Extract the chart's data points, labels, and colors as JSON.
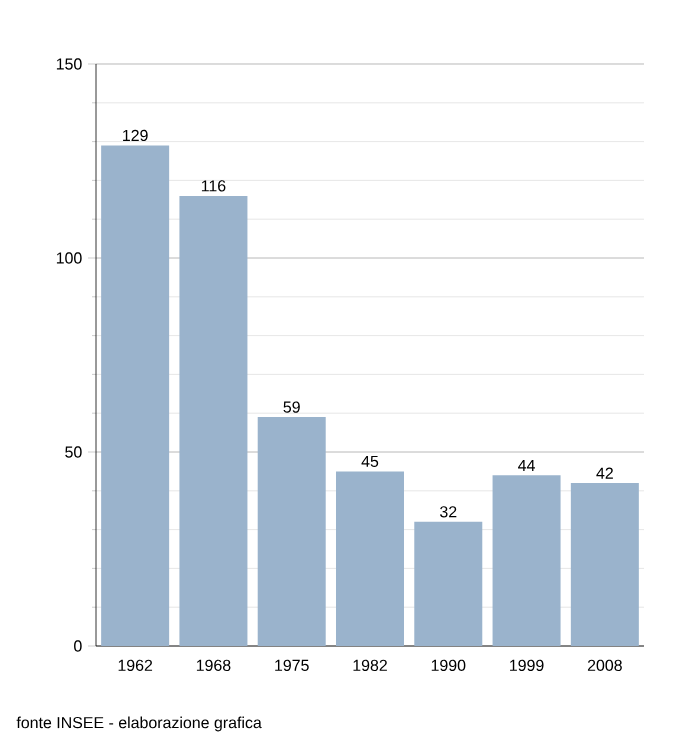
{
  "chart_data": {
    "type": "bar",
    "categories": [
      "1962",
      "1968",
      "1975",
      "1982",
      "1990",
      "1999",
      "2008"
    ],
    "values": [
      129,
      116,
      59,
      45,
      32,
      44,
      42
    ],
    "color": "#9ab3cc",
    "ylim": [
      0,
      150
    ],
    "yticks": [
      0,
      {
        "value": 10,
        "label": null
      },
      {
        "value": 20,
        "label": null
      },
      {
        "value": 30,
        "label": null
      },
      {
        "value": 40,
        "label": null
      },
      50,
      {
        "value": 60,
        "label": null
      },
      {
        "value": 70,
        "label": null
      },
      {
        "value": 80,
        "label": null
      },
      {
        "value": 90,
        "label": null
      },
      100,
      {
        "value": 110,
        "label": null
      },
      {
        "value": 120,
        "label": null
      },
      {
        "value": 130,
        "label": null
      },
      {
        "value": 140,
        "label": null
      },
      150
    ],
    "grid": true,
    "data_labels": true,
    "annotations": [
      "fonte INSEE - elaborazione grafica"
    ]
  }
}
